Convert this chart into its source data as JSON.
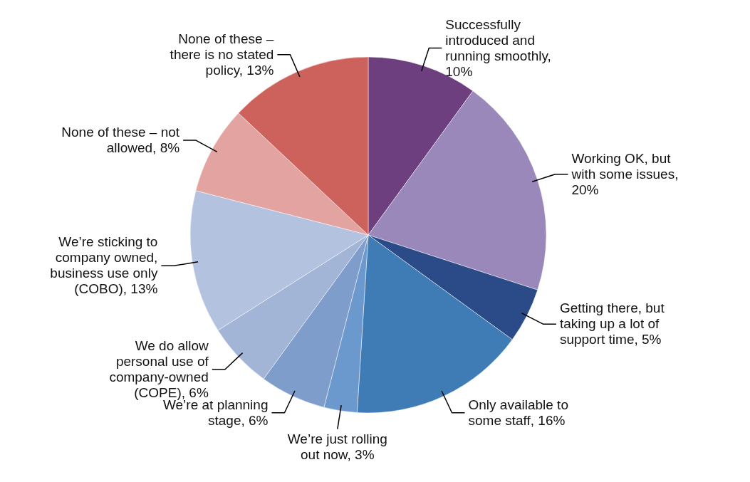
{
  "chart_data": {
    "type": "pie",
    "categories": [
      "Successfully introduced and running smoothly, 10%",
      "Working OK, but with some issues, 20%",
      "Getting there, but taking up a lot of support time, 5%",
      "Only available to some staff, 16%",
      "We’re just rolling out now, 3%",
      "We’re at planning stage, 6%",
      "We do allow personal use of company-owned (COPE), 6%",
      "We’re sticking to company owned, business use only (COBO), 13%",
      "None of these – not allowed, 8%",
      "None of these – there is no stated policy, 13%"
    ],
    "values": [
      10,
      20,
      5,
      16,
      3,
      6,
      6,
      13,
      8,
      13
    ],
    "colors": [
      "#6e3f7e",
      "#9b88bb",
      "#2a4a88",
      "#3f7cb6",
      "#6b98cd",
      "#7e9dcb",
      "#a2b5d7",
      "#b3c3df",
      "#e3a3a1",
      "#cd625c"
    ]
  }
}
